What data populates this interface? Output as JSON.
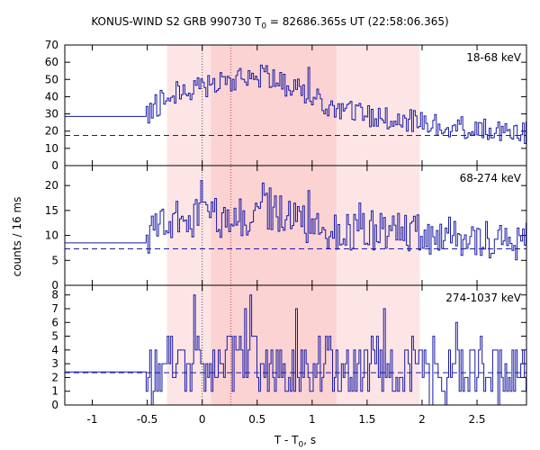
{
  "chart_data": {
    "type": "line",
    "title": {
      "prefix": "KONUS-WIND S2 GRB 990730 T",
      "sub": "0",
      "suffix": " = 82686.365s UT (22:58:06.365)"
    },
    "xlabel": {
      "prefix": "T - T",
      "sub": "0",
      "suffix": ", s"
    },
    "ylabel": "counts / 16 ms",
    "xlim": [
      -1.25,
      2.95
    ],
    "x_ticks": [
      -1,
      -0.5,
      0,
      0.5,
      1,
      1.5,
      2,
      2.5
    ],
    "x_tick_labels": [
      "-1",
      "-0.5",
      "0",
      "0.5",
      "1",
      "1.5",
      "2",
      "2.5"
    ],
    "shaded_intervals": [
      {
        "x": [
          -0.32,
          1.98
        ],
        "color": "#fde5e5"
      },
      {
        "x": [
          0.08,
          1.22
        ],
        "color": "#fbd3d3"
      }
    ],
    "vertical_markers": [
      {
        "x": 0.0,
        "color": "#555555",
        "style": "dotted"
      },
      {
        "x": 0.26,
        "color": "#cc4444",
        "style": "dotted"
      }
    ],
    "bin_width_s": 0.016,
    "line_color": "#1a1aa6",
    "panels": [
      {
        "label": "18-68 keV",
        "ylim": [
          0,
          70
        ],
        "yticks": [
          0,
          10,
          20,
          30,
          40,
          50,
          60,
          70
        ],
        "pre_burst_level": 28.5,
        "pre_burst_end": -0.51,
        "background_level": 17.5,
        "series": [
          [
            -0.51,
            30
          ],
          [
            -0.3,
            41
          ],
          [
            0,
            47
          ],
          [
            0.2,
            46
          ],
          [
            0.4,
            52
          ],
          [
            0.6,
            51
          ],
          [
            0.8,
            45
          ],
          [
            1.0,
            40
          ],
          [
            1.2,
            33
          ],
          [
            1.4,
            30
          ],
          [
            1.6,
            28
          ],
          [
            1.8,
            27
          ],
          [
            2.0,
            24
          ],
          [
            2.2,
            23
          ],
          [
            2.4,
            22
          ],
          [
            2.6,
            20
          ],
          [
            2.8,
            20
          ],
          [
            2.95,
            19
          ]
        ],
        "noise": 7,
        "peaks": [
          [
            0.58,
            58
          ],
          [
            0.96,
            57
          ],
          [
            0.32,
            55
          ],
          [
            0.74,
            53
          ],
          [
            0.16,
            54
          ]
        ]
      },
      {
        "label": "68-274 keV",
        "ylim": [
          0,
          24
        ],
        "yticks": [
          0,
          5,
          10,
          15,
          20
        ],
        "pre_burst_level": 8.5,
        "pre_burst_end": -0.51,
        "background_level": 7.3,
        "series": [
          [
            -0.51,
            10
          ],
          [
            -0.3,
            13
          ],
          [
            0,
            14
          ],
          [
            0.2,
            13
          ],
          [
            0.4,
            14
          ],
          [
            0.6,
            15
          ],
          [
            0.8,
            13
          ],
          [
            1.0,
            12
          ],
          [
            1.2,
            11
          ],
          [
            1.4,
            11
          ],
          [
            1.6,
            11
          ],
          [
            1.8,
            10.5
          ],
          [
            2.0,
            10
          ],
          [
            2.2,
            10
          ],
          [
            2.4,
            9.5
          ],
          [
            2.6,
            9
          ],
          [
            2.8,
            9
          ],
          [
            2.95,
            8.5
          ]
        ],
        "noise": 4,
        "peaks": [
          [
            -0.01,
            21
          ],
          [
            0.55,
            20.5
          ],
          [
            0.61,
            19.5
          ],
          [
            0.96,
            19
          ],
          [
            1.43,
            16.5
          ]
        ]
      },
      {
        "label": "274-1037 keV",
        "ylim": [
          0,
          8.7
        ],
        "yticks": [
          0,
          1,
          2,
          3,
          4,
          5,
          6,
          7,
          8
        ],
        "pre_burst_level": 2.4,
        "pre_burst_end": -0.51,
        "background_level": 2.35,
        "series": [
          [
            -0.51,
            2.5
          ],
          [
            -0.3,
            3
          ],
          [
            0,
            3
          ],
          [
            0.3,
            3
          ],
          [
            0.6,
            3
          ],
          [
            0.9,
            3
          ],
          [
            1.2,
            2.8
          ],
          [
            1.5,
            2.7
          ],
          [
            1.8,
            2.6
          ],
          [
            2.1,
            2.5
          ],
          [
            2.4,
            2.5
          ],
          [
            2.7,
            2.4
          ],
          [
            2.95,
            2.4
          ]
        ],
        "noise": 2.2,
        "integer": true,
        "peaks": [
          [
            -0.07,
            8
          ],
          [
            0.44,
            8
          ],
          [
            0.38,
            7
          ],
          [
            1.65,
            7
          ],
          [
            0.85,
            7
          ],
          [
            2.3,
            6
          ]
        ]
      }
    ]
  }
}
